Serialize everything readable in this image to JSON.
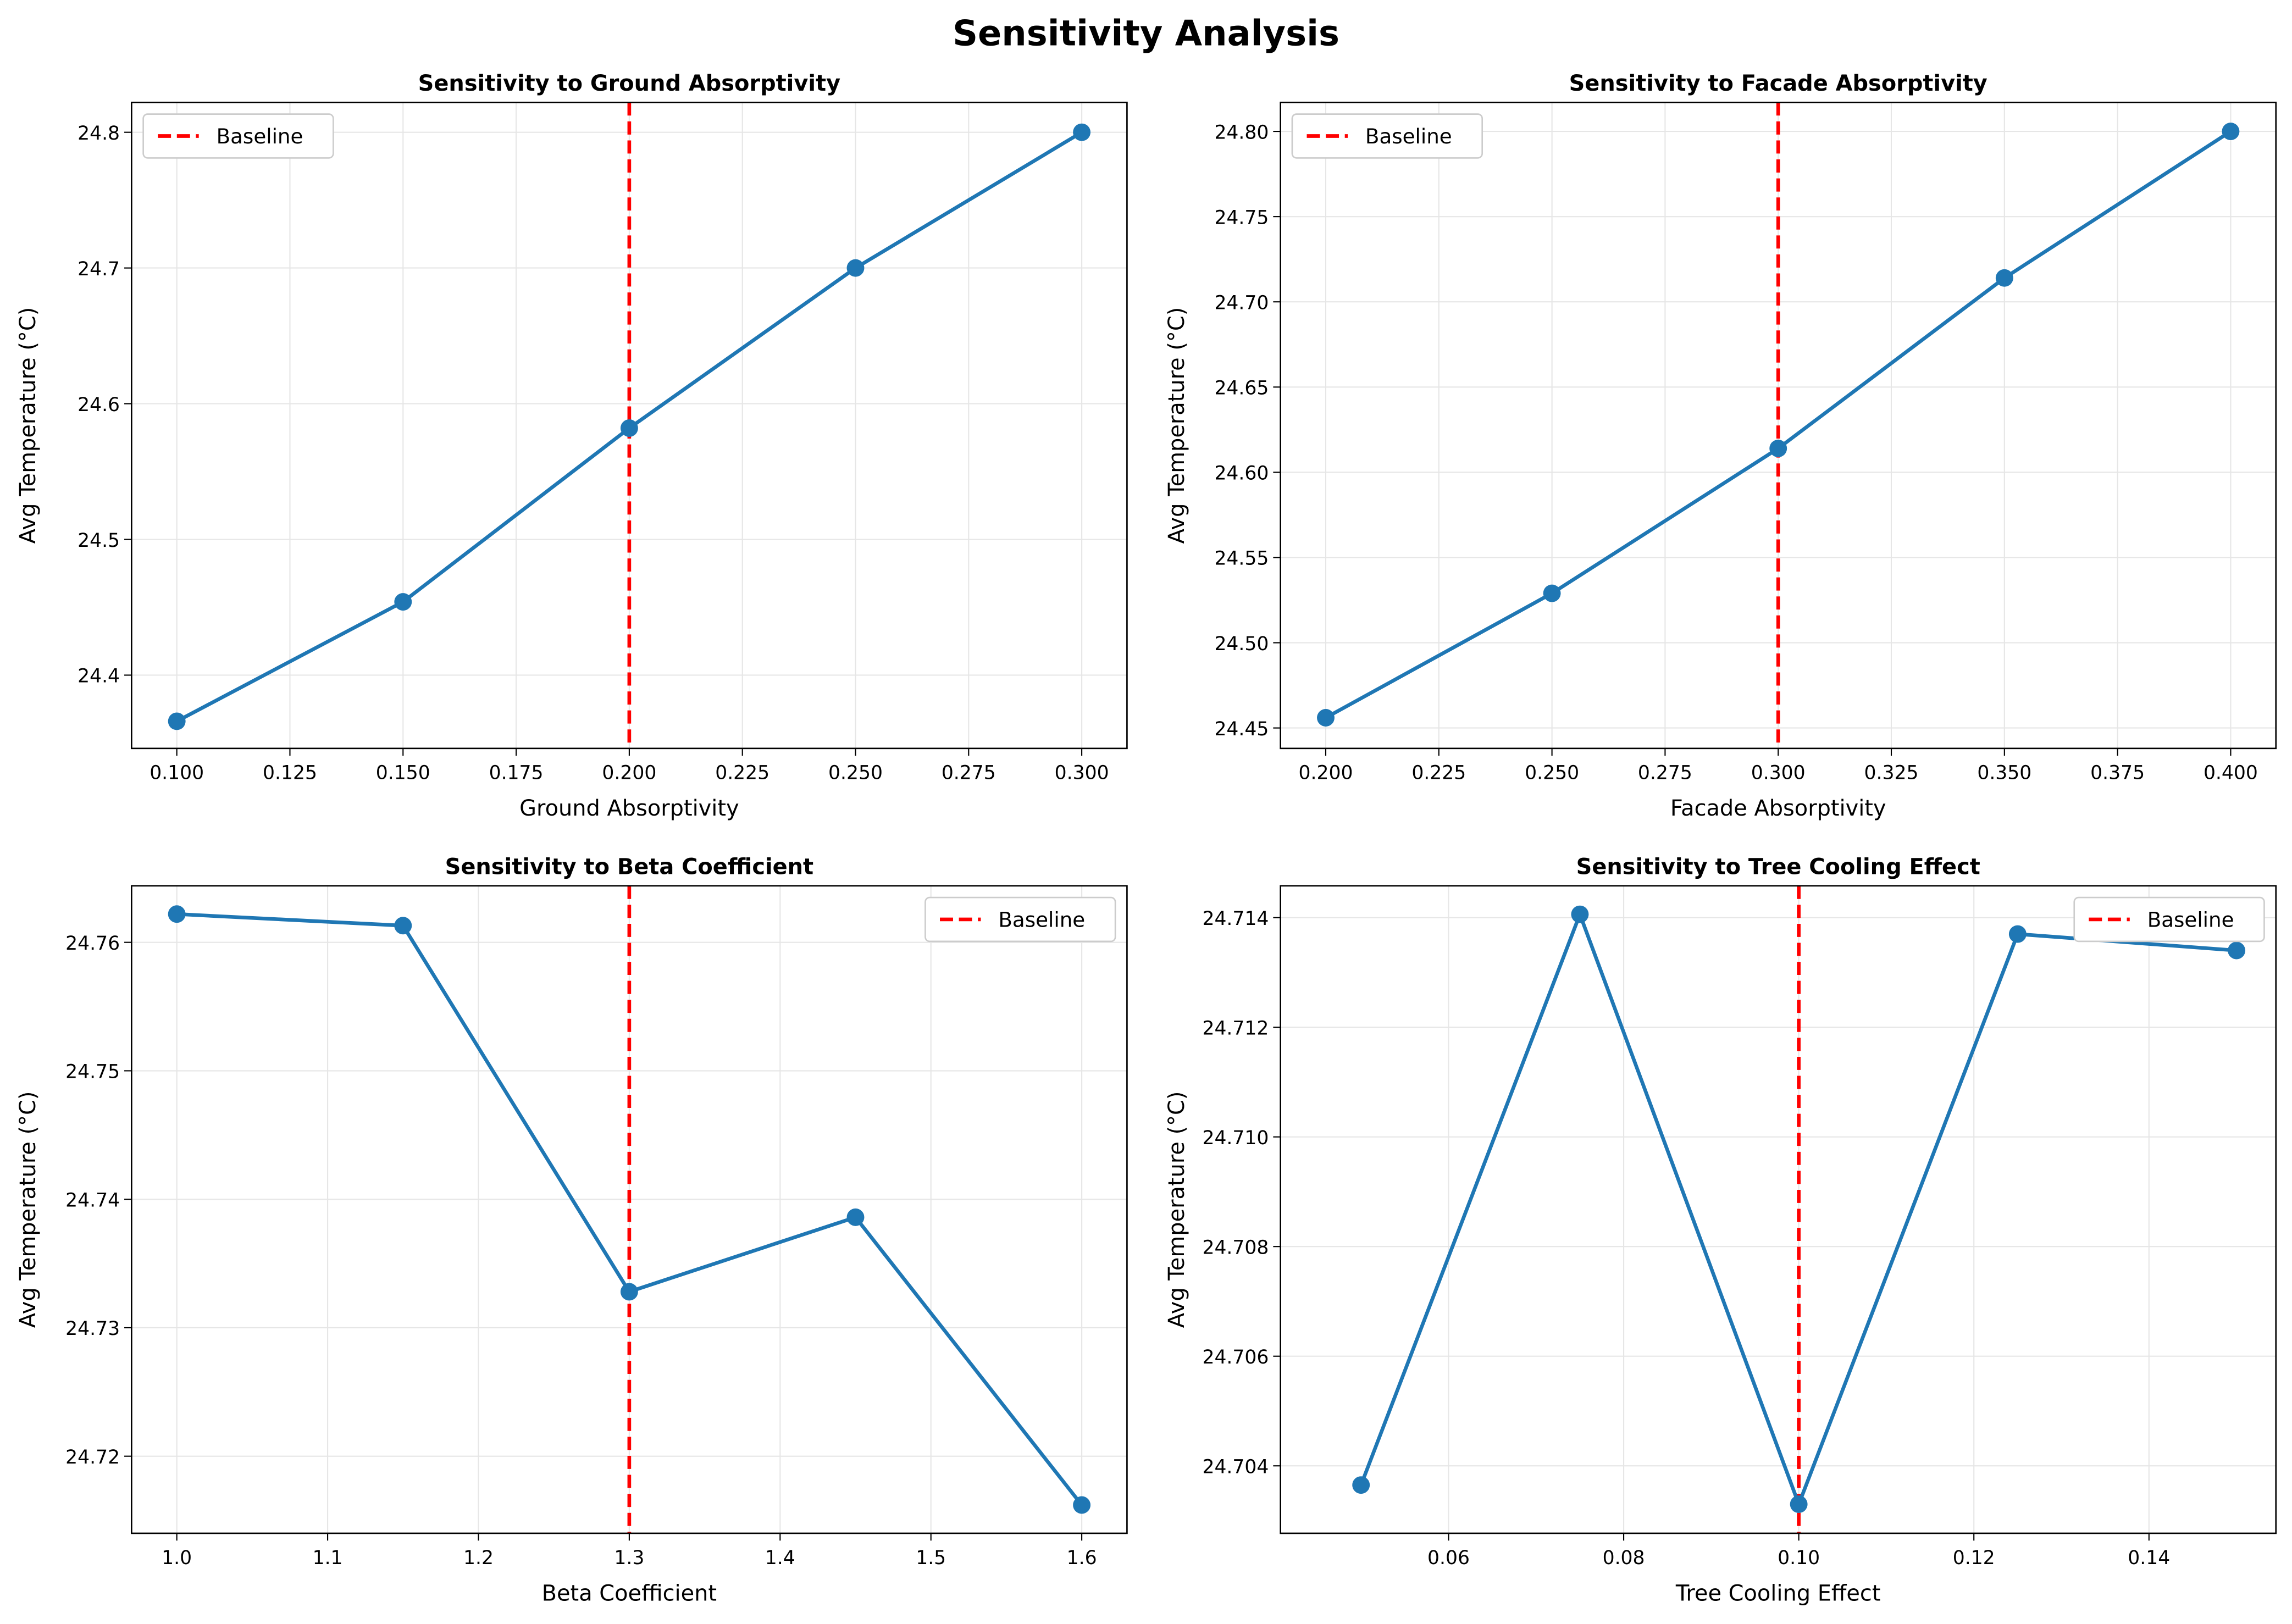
{
  "suptitle": "Sensitivity Analysis",
  "colors": {
    "line": "#1f77b4",
    "baseline": "#ff0000",
    "grid": "#e6e6e6"
  },
  "chart_data": [
    {
      "type": "line",
      "title": "Sensitivity to Ground Absorptivity",
      "xlabel": "Ground Absorptivity",
      "ylabel": "Avg Temperature (°C)",
      "x": [
        0.1,
        0.15,
        0.2,
        0.25,
        0.3
      ],
      "y": [
        24.366,
        24.454,
        24.582,
        24.7,
        24.8
      ],
      "xlim": [
        0.09,
        0.31
      ],
      "ylim": [
        24.346,
        24.822
      ],
      "xticks": [
        0.1,
        0.125,
        0.15,
        0.175,
        0.2,
        0.225,
        0.25,
        0.275,
        0.3
      ],
      "xtick_labels": [
        "0.100",
        "0.125",
        "0.150",
        "0.175",
        "0.200",
        "0.225",
        "0.250",
        "0.275",
        "0.300"
      ],
      "yticks": [
        24.4,
        24.5,
        24.6,
        24.7,
        24.8
      ],
      "ytick_labels": [
        "24.4",
        "24.5",
        "24.6",
        "24.7",
        "24.8"
      ],
      "baseline": 0.2,
      "legend_label": "Baseline",
      "legend": "top-left",
      "grid": true
    },
    {
      "type": "line",
      "title": "Sensitivity to Facade Absorptivity",
      "xlabel": "Facade Absorptivity",
      "ylabel": "Avg Temperature (°C)",
      "x": [
        0.2,
        0.25,
        0.3,
        0.35,
        0.4
      ],
      "y": [
        24.456,
        24.529,
        24.614,
        24.714,
        24.8
      ],
      "xlim": [
        0.19,
        0.41
      ],
      "ylim": [
        24.438,
        24.817
      ],
      "xticks": [
        0.2,
        0.225,
        0.25,
        0.275,
        0.3,
        0.325,
        0.35,
        0.375,
        0.4
      ],
      "xtick_labels": [
        "0.200",
        "0.225",
        "0.250",
        "0.275",
        "0.300",
        "0.325",
        "0.350",
        "0.375",
        "0.400"
      ],
      "yticks": [
        24.45,
        24.5,
        24.55,
        24.6,
        24.65,
        24.7,
        24.75,
        24.8
      ],
      "ytick_labels": [
        "24.45",
        "24.50",
        "24.55",
        "24.60",
        "24.65",
        "24.70",
        "24.75",
        "24.80"
      ],
      "baseline": 0.3,
      "legend_label": "Baseline",
      "legend": "top-left",
      "grid": true
    },
    {
      "type": "line",
      "title": "Sensitivity to Beta Coefficient",
      "xlabel": "Beta Coefficient",
      "ylabel": "Avg Temperature (°C)",
      "x": [
        1.0,
        1.15,
        1.3,
        1.45,
        1.6
      ],
      "y": [
        24.7622,
        24.7613,
        24.7328,
        24.7386,
        24.7162
      ],
      "xlim": [
        0.97,
        1.63
      ],
      "ylim": [
        24.714,
        24.7644
      ],
      "xticks": [
        1.0,
        1.1,
        1.2,
        1.3,
        1.4,
        1.5,
        1.6
      ],
      "xtick_labels": [
        "1.0",
        "1.1",
        "1.2",
        "1.3",
        "1.4",
        "1.5",
        "1.6"
      ],
      "yticks": [
        24.72,
        24.73,
        24.74,
        24.75,
        24.76
      ],
      "ytick_labels": [
        "24.72",
        "24.73",
        "24.74",
        "24.75",
        "24.76"
      ],
      "baseline": 1.3,
      "legend_label": "Baseline",
      "legend": "top-right",
      "grid": true
    },
    {
      "type": "line",
      "title": "Sensitivity to Tree Cooling Effect",
      "xlabel": "Tree Cooling Effect",
      "ylabel": "Avg Temperature (°C)",
      "x": [
        0.05,
        0.075,
        0.1,
        0.125,
        0.15
      ],
      "y": [
        24.70365,
        24.71406,
        24.7033,
        24.7137,
        24.7134
      ],
      "xlim": [
        0.0408,
        0.1545
      ],
      "ylim": [
        24.70277,
        24.71458
      ],
      "xticks": [
        0.06,
        0.08,
        0.1,
        0.12,
        0.14
      ],
      "xtick_labels": [
        "0.06",
        "0.08",
        "0.10",
        "0.12",
        "0.14"
      ],
      "yticks": [
        24.704,
        24.706,
        24.708,
        24.71,
        24.712,
        24.714
      ],
      "ytick_labels": [
        "24.704",
        "24.706",
        "24.708",
        "24.710",
        "24.712",
        "24.714"
      ],
      "baseline": 0.1,
      "legend_label": "Baseline",
      "legend": "top-right",
      "grid": true
    }
  ]
}
